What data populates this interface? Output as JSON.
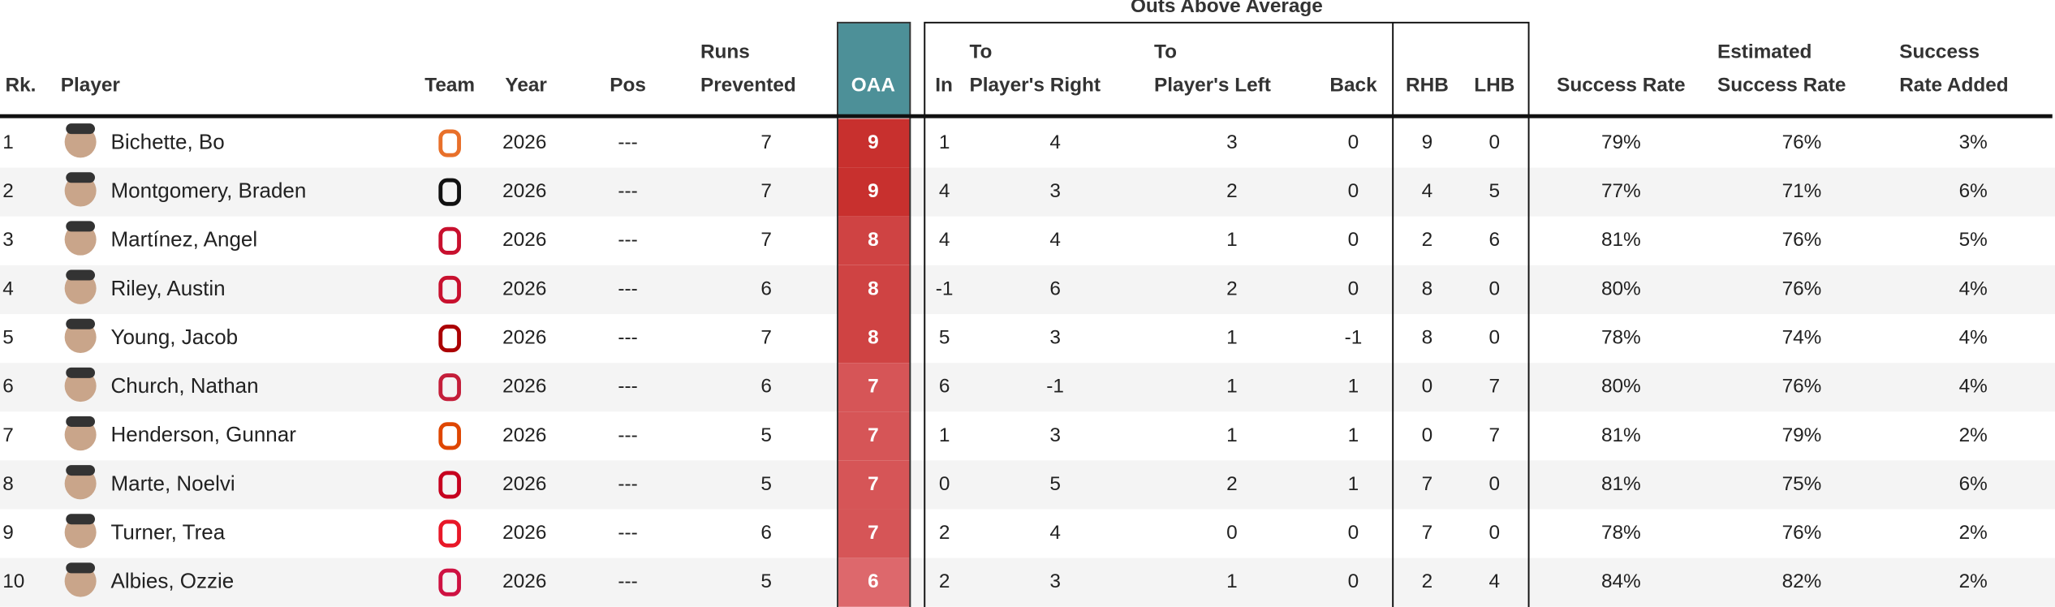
{
  "table": {
    "group_title": "Outs Above Average",
    "headers": {
      "rk": [
        "Rk."
      ],
      "player": [
        "Player"
      ],
      "team": [
        "Team"
      ],
      "year": [
        "Year"
      ],
      "pos": [
        "Pos"
      ],
      "runs": [
        "Runs",
        "Prevented"
      ],
      "oaa": [
        "OAA"
      ],
      "in": [
        "In"
      ],
      "right": [
        "To",
        "Player's Right"
      ],
      "left": [
        "To",
        "Player's Left"
      ],
      "back": [
        "Back"
      ],
      "rhb": [
        "RHB"
      ],
      "lhb": [
        "LHB"
      ],
      "success": [
        "Success Rate"
      ],
      "est": [
        "Estimated",
        "Success Rate"
      ],
      "added": [
        "Success",
        "Rate Added"
      ]
    },
    "rows": [
      {
        "rk": 1,
        "player": "Bichette, Bo",
        "year": 2026,
        "pos": "---",
        "runs": 7,
        "oaa": 9,
        "in": 1,
        "right": 4,
        "left": 3,
        "back": 0,
        "rhb": 9,
        "lhb": 0,
        "success": "79%",
        "est": "76%",
        "added": "3%"
      },
      {
        "rk": 2,
        "player": "Montgomery, Braden",
        "year": 2026,
        "pos": "---",
        "runs": 7,
        "oaa": 9,
        "in": 4,
        "right": 3,
        "left": 2,
        "back": 0,
        "rhb": 4,
        "lhb": 5,
        "success": "77%",
        "est": "71%",
        "added": "6%"
      },
      {
        "rk": 3,
        "player": "Martínez, Angel",
        "year": 2026,
        "pos": "---",
        "runs": 7,
        "oaa": 8,
        "in": 4,
        "right": 4,
        "left": 1,
        "back": 0,
        "rhb": 2,
        "lhb": 6,
        "success": "81%",
        "est": "76%",
        "added": "5%"
      },
      {
        "rk": 4,
        "player": "Riley, Austin",
        "year": 2026,
        "pos": "---",
        "runs": 6,
        "oaa": 8,
        "in": -1,
        "right": 6,
        "left": 2,
        "back": 0,
        "rhb": 8,
        "lhb": 0,
        "success": "80%",
        "est": "76%",
        "added": "4%"
      },
      {
        "rk": 5,
        "player": "Young, Jacob",
        "year": 2026,
        "pos": "---",
        "runs": 7,
        "oaa": 8,
        "in": 5,
        "right": 3,
        "left": 1,
        "back": -1,
        "rhb": 8,
        "lhb": 0,
        "success": "78%",
        "est": "74%",
        "added": "4%"
      },
      {
        "rk": 6,
        "player": "Church, Nathan",
        "year": 2026,
        "pos": "---",
        "runs": 6,
        "oaa": 7,
        "in": 6,
        "right": -1,
        "left": 1,
        "back": 1,
        "rhb": 0,
        "lhb": 7,
        "success": "80%",
        "est": "76%",
        "added": "4%"
      },
      {
        "rk": 7,
        "player": "Henderson, Gunnar",
        "year": 2026,
        "pos": "---",
        "runs": 5,
        "oaa": 7,
        "in": 1,
        "right": 3,
        "left": 1,
        "back": 1,
        "rhb": 0,
        "lhb": 7,
        "success": "81%",
        "est": "79%",
        "added": "2%"
      },
      {
        "rk": 8,
        "player": "Marte, Noelvi",
        "year": 2026,
        "pos": "---",
        "runs": 5,
        "oaa": 7,
        "in": 0,
        "right": 5,
        "left": 2,
        "back": 1,
        "rhb": 7,
        "lhb": 0,
        "success": "81%",
        "est": "75%",
        "added": "6%"
      },
      {
        "rk": 9,
        "player": "Turner, Trea",
        "year": 2026,
        "pos": "---",
        "runs": 6,
        "oaa": 7,
        "in": 2,
        "right": 4,
        "left": 0,
        "back": 0,
        "rhb": 7,
        "lhb": 0,
        "success": "78%",
        "est": "76%",
        "added": "2%"
      },
      {
        "rk": 10,
        "player": "Albies, Ozzie",
        "year": 2026,
        "pos": "---",
        "runs": 5,
        "oaa": 6,
        "in": 2,
        "right": 3,
        "left": 1,
        "back": 0,
        "rhb": 2,
        "lhb": 4,
        "success": "84%",
        "est": "82%",
        "added": "2%"
      }
    ]
  }
}
